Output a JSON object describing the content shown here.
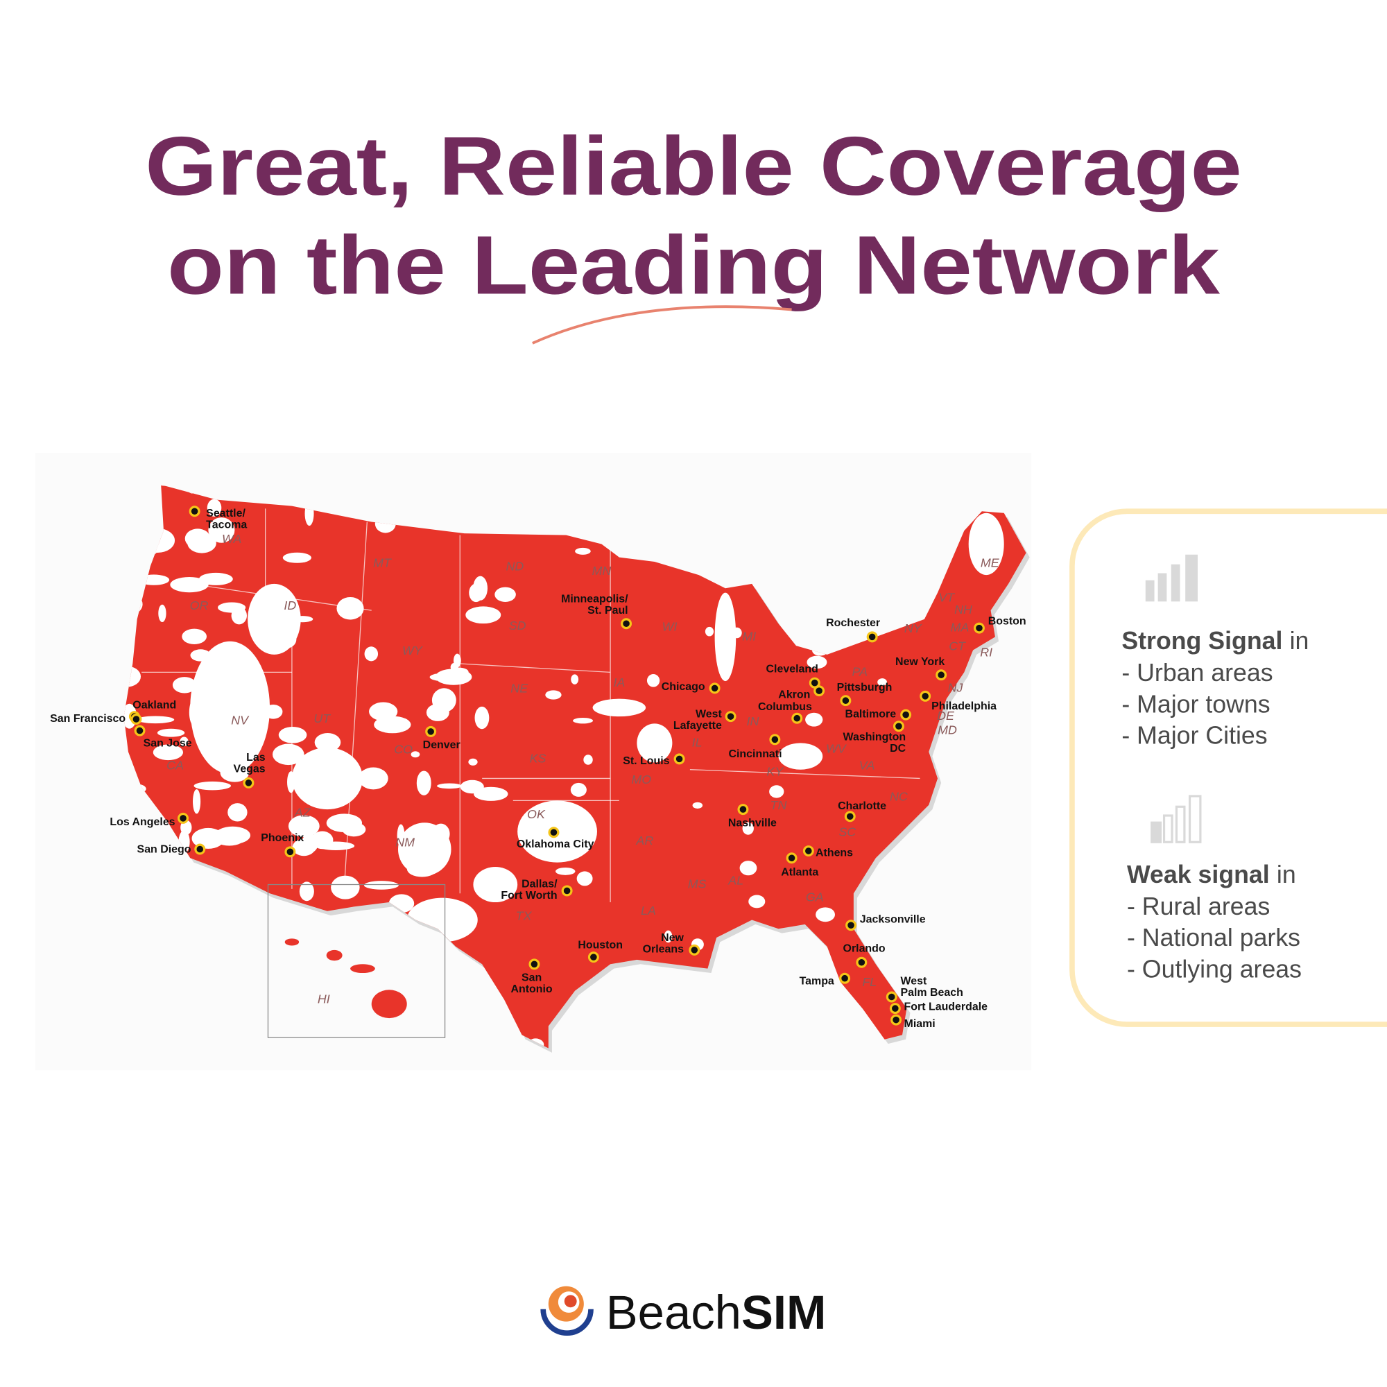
{
  "header": {
    "title_lines": [
      "Great, Reliable Coverage",
      "on the Leading Network"
    ]
  },
  "map": {
    "cities": [
      {
        "lines": [
          "Seattle/",
          "Tacoma"
        ]
      },
      {
        "lines": [
          "Minneapolis/",
          "St. Paul"
        ]
      },
      {
        "lines": [
          "Rochester"
        ]
      },
      {
        "lines": [
          "Boston"
        ]
      },
      {
        "lines": [
          "New York"
        ]
      },
      {
        "lines": [
          "Cleveland"
        ]
      },
      {
        "lines": [
          "Chicago"
        ]
      },
      {
        "lines": [
          "Akron"
        ]
      },
      {
        "lines": [
          "Pittsburgh"
        ]
      },
      {
        "lines": [
          "Philadelphia"
        ]
      },
      {
        "lines": [
          "Oakland"
        ]
      },
      {
        "lines": [
          "San Francisco"
        ]
      },
      {
        "lines": [
          "San Jose"
        ]
      },
      {
        "lines": [
          "Columbus"
        ]
      },
      {
        "lines": [
          "Baltimore"
        ]
      },
      {
        "lines": [
          "West",
          "Lafayette"
        ]
      },
      {
        "lines": [
          "Denver"
        ]
      },
      {
        "lines": [
          "Washington",
          "DC"
        ]
      },
      {
        "lines": [
          "Cincinnati"
        ]
      },
      {
        "lines": [
          "Las",
          "Vegas"
        ]
      },
      {
        "lines": [
          "St. Louis"
        ]
      },
      {
        "lines": [
          "Charlotte"
        ]
      },
      {
        "lines": [
          "Nashville"
        ]
      },
      {
        "lines": [
          "Los Angeles"
        ]
      },
      {
        "lines": [
          "Oklahoma City"
        ]
      },
      {
        "lines": [
          "Phoenix"
        ]
      },
      {
        "lines": [
          "Athens"
        ]
      },
      {
        "lines": [
          "Atlanta"
        ]
      },
      {
        "lines": [
          "San Diego"
        ]
      },
      {
        "lines": [
          "Dallas/",
          "Fort Worth"
        ]
      },
      {
        "lines": [
          "Jacksonville"
        ]
      },
      {
        "lines": [
          "Houston"
        ]
      },
      {
        "lines": [
          "New",
          "Orleans"
        ]
      },
      {
        "lines": [
          "Orlando"
        ]
      },
      {
        "lines": [
          "San",
          "Antonio"
        ]
      },
      {
        "lines": [
          "Tampa"
        ]
      },
      {
        "lines": [
          "West",
          "Palm Beach"
        ]
      },
      {
        "lines": [
          "Fort Lauderdale"
        ]
      },
      {
        "lines": [
          "Miami"
        ]
      }
    ],
    "states": [
      "WA",
      "OR",
      "ID",
      "MT",
      "ND",
      "MN",
      "WI",
      "MI",
      "SD",
      "WY",
      "NE",
      "IA",
      "IL",
      "IN",
      "NV",
      "UT",
      "CO",
      "KS",
      "MO",
      "KY",
      "WV",
      "VA",
      "NC",
      "TN",
      "SC",
      "GA",
      "AL",
      "MS",
      "AR",
      "LA",
      "OK",
      "TX",
      "NM",
      "AZ",
      "CA",
      "FL",
      "NY",
      "PA",
      "NJ",
      "DE",
      "MD",
      "CT",
      "RI",
      "MA",
      "NH",
      "VT",
      "ME",
      "HI"
    ]
  },
  "legend": [
    {
      "heading": "Strong Signal",
      "suffix": "in",
      "items": [
        "- Urban areas",
        "- Major towns",
        "- Major Cities"
      ]
    },
    {
      "heading": "Weak signal",
      "suffix": "in",
      "items": [
        "- Rural areas",
        "- National parks",
        "- Outlying areas"
      ]
    }
  ],
  "brand": {
    "light": "Beach",
    "bold": "SIM"
  }
}
